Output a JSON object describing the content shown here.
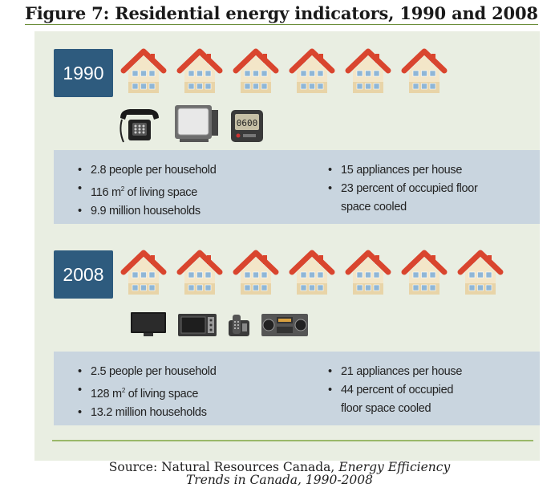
{
  "figure": {
    "title": "Figure 7:   Residential energy indicators, 1990 and 2008"
  },
  "section_1990": {
    "year": "1990",
    "house_count": 6,
    "appliance_icons": [
      "telephone-icon",
      "crt-television-icon",
      "clock-radio-icon"
    ],
    "clock_display": "0600",
    "left_stats": [
      {
        "text": "2.8 people per household"
      },
      {
        "pre": "116 m",
        "sup": "2",
        "post": " of living space"
      },
      {
        "text": "9.9 million households"
      }
    ],
    "right_stats": [
      {
        "text": "15 appliances per house"
      },
      {
        "line1": "23 percent of occupied floor",
        "line2": "space cooled"
      }
    ]
  },
  "section_2008": {
    "year": "2008",
    "house_count": 7,
    "appliance_icons": [
      "flat-tv-icon",
      "microwave-icon",
      "cordless-phone-icon",
      "stereo-icon"
    ],
    "left_stats": [
      {
        "text": "2.5 people per household"
      },
      {
        "pre": "128 m",
        "sup": "2",
        "post": " of living space"
      },
      {
        "text": "13.2 million households"
      }
    ],
    "right_stats": [
      {
        "text": "21 appliances per house"
      },
      {
        "line1": "44 percent of occupied",
        "line2": "floor space cooled"
      }
    ]
  },
  "source": {
    "prefix": "Source: Natural Resources Canada, ",
    "title_line1": "Energy Efficiency",
    "title_line2": "Trends in Canada, 1990-2008"
  },
  "colors": {
    "badge": "#2e5b7e",
    "panel": "#e9eee2",
    "stat_box": "#c9d5df",
    "roof": "#d9452e",
    "rule": "#9ab86a"
  }
}
